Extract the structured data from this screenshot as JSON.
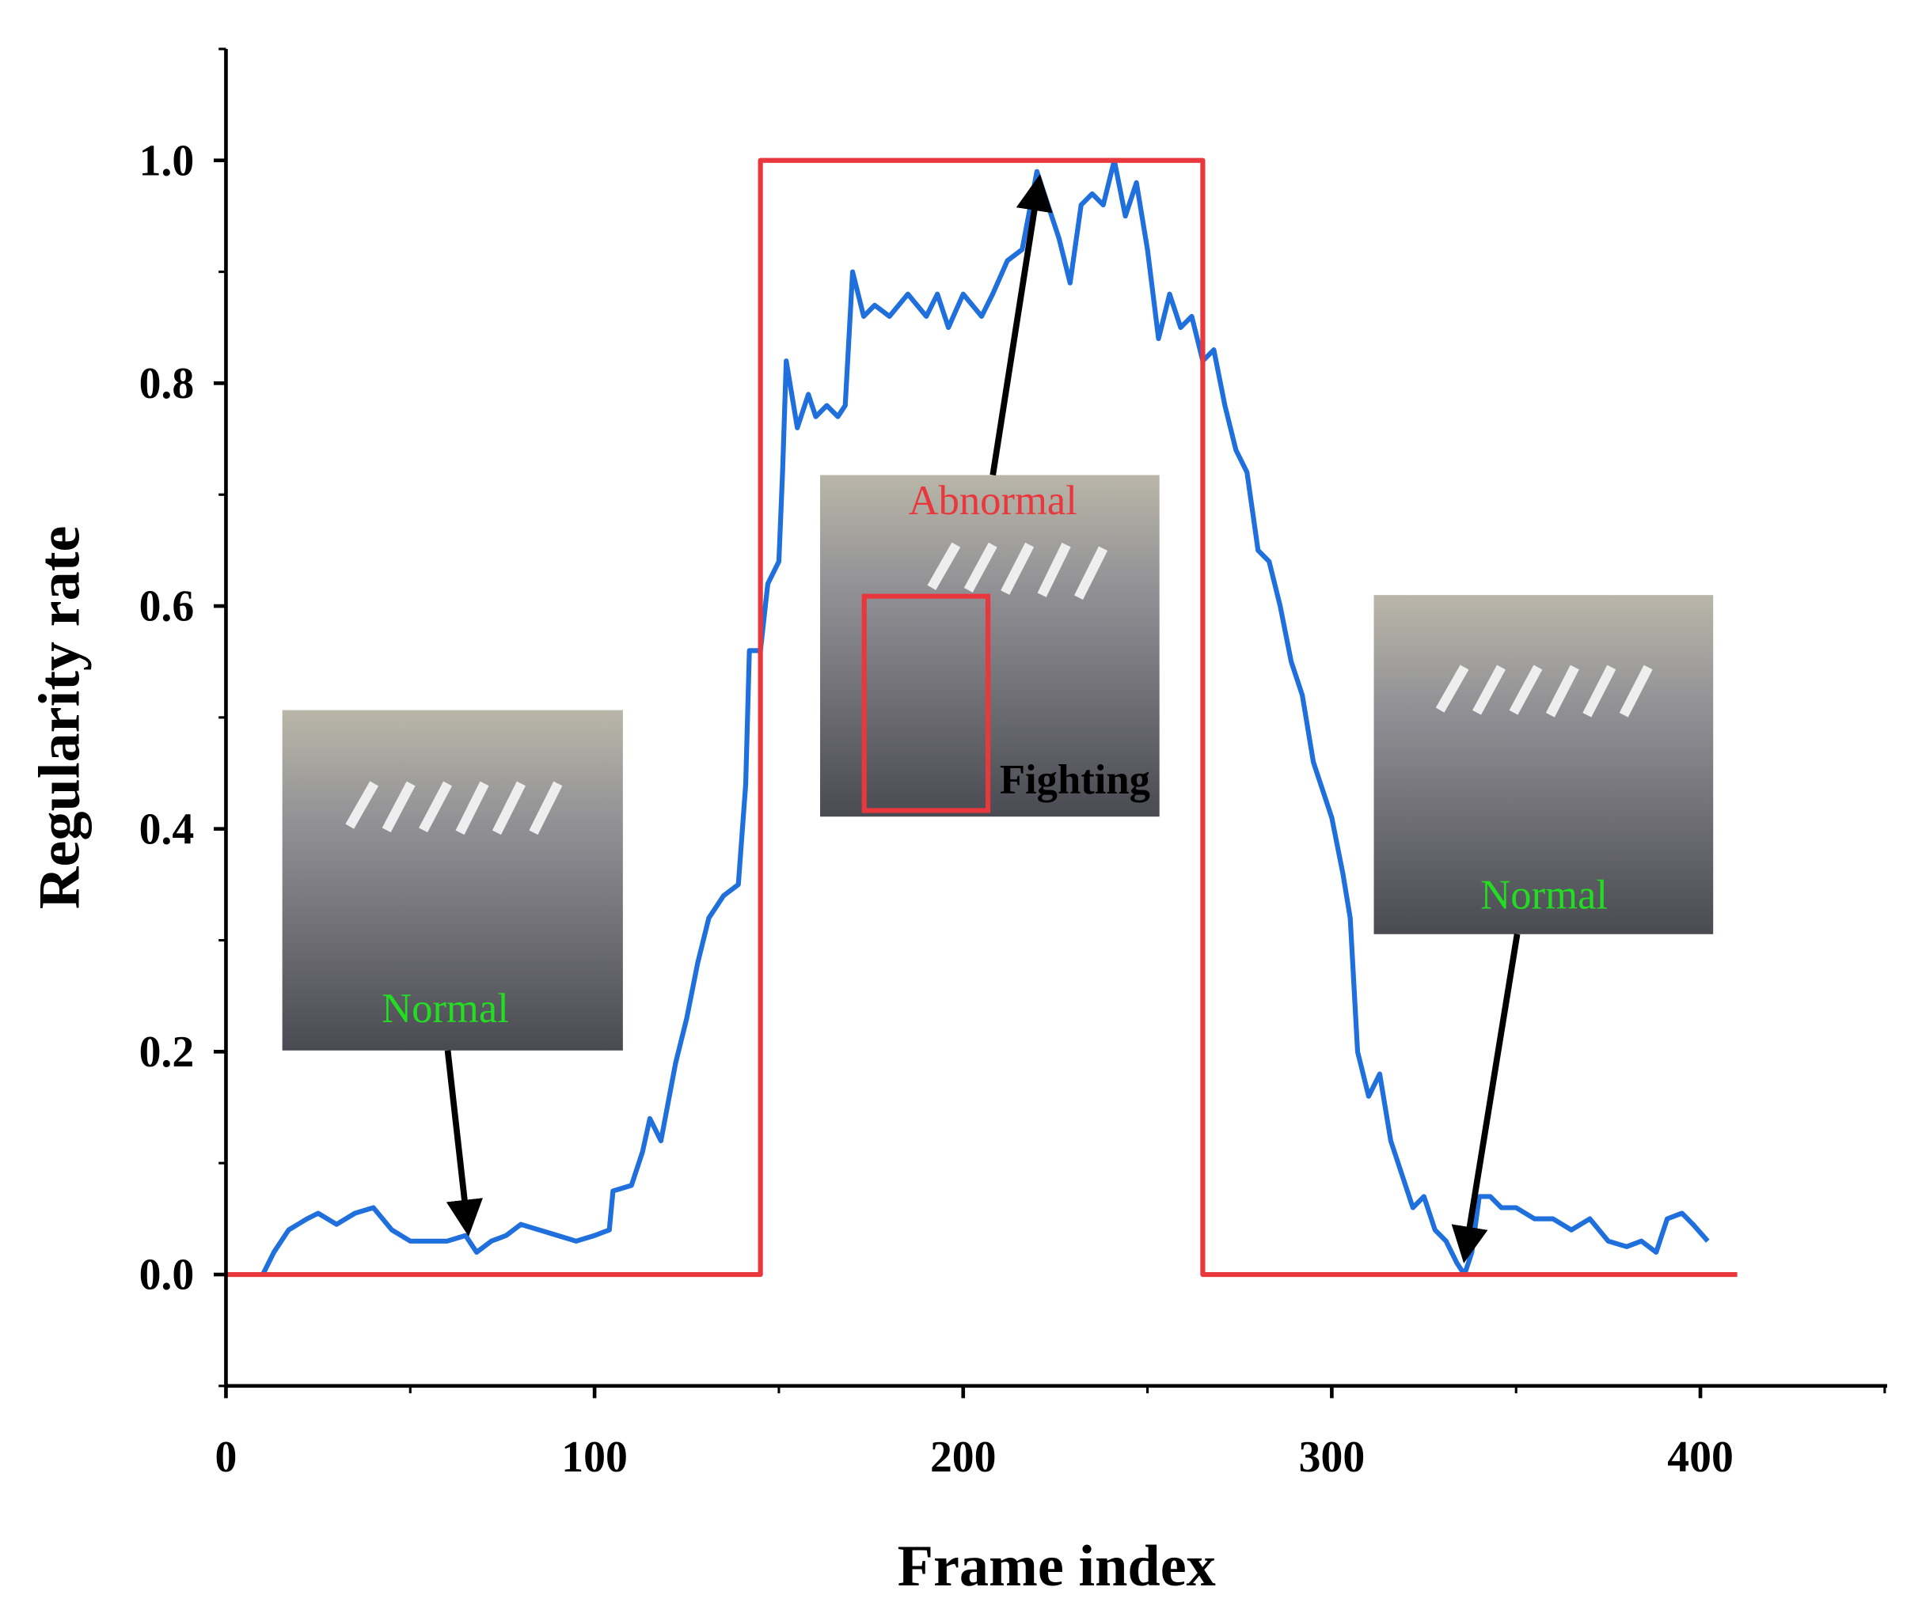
{
  "chart_data": {
    "type": "line",
    "x_label": "Frame index",
    "y_label": "Regularity rate",
    "xlim": [
      0,
      450
    ],
    "ylim": [
      -0.1,
      1.1
    ],
    "xticks": [
      0,
      100,
      200,
      300,
      400
    ],
    "yticks": [
      {
        "value": 0,
        "label": "0.0"
      },
      0.2,
      0.4,
      0.6,
      0.8,
      {
        "value": 1,
        "label": "1.0"
      }
    ],
    "series": [
      {
        "color": "#1f6fdc",
        "x": [
          10,
          13,
          17,
          22,
          25,
          30,
          35,
          40,
          45,
          50,
          55,
          60,
          65,
          68,
          72,
          76,
          80,
          85,
          90,
          95,
          100,
          104,
          105,
          110,
          113,
          115,
          118,
          122,
          125,
          128,
          131,
          135,
          139,
          141,
          142,
          145,
          147,
          150,
          151,
          152,
          155,
          158,
          160,
          163,
          166,
          168,
          170,
          173,
          176,
          180,
          185,
          190,
          193,
          196,
          200,
          205,
          208,
          212,
          216,
          220,
          223,
          226,
          229,
          232,
          235,
          238,
          241,
          244,
          247,
          250,
          253,
          256,
          259,
          262,
          265,
          268,
          271,
          274,
          277,
          280,
          283,
          286,
          289,
          292,
          295,
          300,
          303,
          305,
          307,
          310,
          313,
          316,
          319,
          322,
          325,
          328,
          331,
          334,
          336,
          338,
          340,
          343,
          346,
          350,
          355,
          360,
          365,
          370,
          375,
          380,
          384,
          388,
          391,
          395,
          398,
          402
        ],
        "values": [
          0,
          0.02,
          0.04,
          0.05,
          0.055,
          0.045,
          0.055,
          0.06,
          0.04,
          0.03,
          0.03,
          0.03,
          0.035,
          0.02,
          0.03,
          0.035,
          0.045,
          0.04,
          0.035,
          0.03,
          0.035,
          0.04,
          0.075,
          0.08,
          0.11,
          0.14,
          0.12,
          0.19,
          0.23,
          0.28,
          0.32,
          0.34,
          0.35,
          0.44,
          0.56,
          0.56,
          0.62,
          0.64,
          0.72,
          0.82,
          0.76,
          0.79,
          0.77,
          0.78,
          0.77,
          0.78,
          0.9,
          0.86,
          0.87,
          0.86,
          0.88,
          0.86,
          0.88,
          0.85,
          0.88,
          0.86,
          0.88,
          0.91,
          0.92,
          0.99,
          0.96,
          0.93,
          0.89,
          0.96,
          0.97,
          0.96,
          1.0,
          0.95,
          0.98,
          0.92,
          0.84,
          0.88,
          0.85,
          0.86,
          0.82,
          0.83,
          0.78,
          0.74,
          0.72,
          0.65,
          0.64,
          0.6,
          0.55,
          0.52,
          0.46,
          0.41,
          0.36,
          0.32,
          0.2,
          0.16,
          0.18,
          0.12,
          0.09,
          0.06,
          0.07,
          0.04,
          0.03,
          0.01,
          0,
          0.02,
          0.07,
          0.07,
          0.06,
          0.06,
          0.05,
          0.05,
          0.04,
          0.05,
          0.03,
          0.025,
          0.03,
          0.02,
          0.05,
          0.055,
          0.045,
          0.03
        ]
      },
      {
        "color": "#e8383d",
        "x": [
          0,
          145,
          145,
          265,
          265,
          410
        ],
        "values": [
          0,
          0,
          1,
          1,
          0,
          0
        ]
      }
    ],
    "annotations": [
      "Normal",
      "Abnormal",
      "Fighting",
      "Normal"
    ]
  }
}
